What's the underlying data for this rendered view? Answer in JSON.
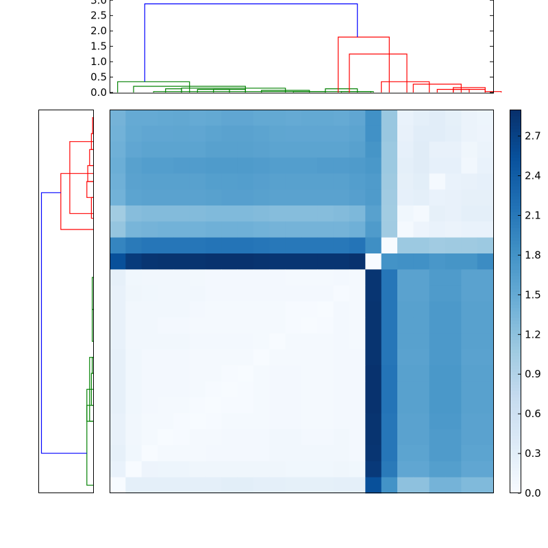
{
  "chart_data": {
    "type": "heatmap",
    "title": "",
    "xlabel": "",
    "ylabel": "",
    "cmap": "Blues",
    "colorbar": {
      "range": [
        0,
        2.9
      ],
      "ticks": [
        0.0,
        0.3,
        0.6,
        0.9,
        1.2,
        1.5,
        1.8,
        2.1,
        2.4,
        2.7
      ],
      "tick_labels": [
        "0.0",
        "0.3",
        "0.6",
        "0.9",
        "1.2",
        "1.5",
        "1.8",
        "2.1",
        "2.4",
        "2.7"
      ]
    },
    "top_dendrogram": {
      "ylim": [
        0,
        3.05
      ],
      "ticks": [
        0.0,
        0.5,
        1.0,
        1.5,
        2.0,
        2.5,
        3.0
      ],
      "tick_labels": [
        "0.0",
        "0.5",
        "1.0",
        "1.5",
        "2.0",
        "2.5",
        "3.0"
      ],
      "links": [
        {
          "x": [
            2.75,
            2.75,
            16.35,
            16.35
          ],
          "y": [
            0.0,
            0.03,
            0.03,
            0.0
          ],
          "color": "green"
        },
        {
          "x": [
            11.5,
            11.5,
            13.5,
            13.5
          ],
          "y": [
            0.0,
            0.03,
            0.03,
            0.0
          ],
          "color": "green"
        },
        {
          "x": [
            14.5,
            14.5,
            16.5,
            16.5
          ],
          "y": [
            0.0,
            0.03,
            0.03,
            0.0
          ],
          "color": "green"
        },
        {
          "x": [
            9.5,
            9.5,
            12.5,
            12.5
          ],
          "y": [
            0.0,
            0.07,
            0.07,
            0.0
          ],
          "color": "green"
        },
        {
          "x": [
            6.5,
            6.5,
            8.5,
            8.5
          ],
          "y": [
            0.0,
            0.1,
            0.1,
            0.0
          ],
          "color": "green"
        },
        {
          "x": [
            5.5,
            5.5,
            7.5,
            7.5
          ],
          "y": [
            0.0,
            0.1,
            0.1,
            0.0
          ],
          "color": "green"
        },
        {
          "x": [
            3.5,
            3.5,
            4.5,
            4.5
          ],
          "y": [
            0.0,
            0.12,
            0.12,
            0.0
          ],
          "color": "green"
        },
        {
          "x": [
            13.5,
            13.5,
            15.5,
            15.5
          ],
          "y": [
            0.0,
            0.12,
            0.12,
            0.0
          ],
          "color": "green"
        },
        {
          "x": [
            4.5,
            4.5,
            11.0,
            11.0
          ],
          "y": [
            0.0,
            0.14,
            0.14,
            0.0
          ],
          "color": "green"
        },
        {
          "x": [
            1.5,
            1.5,
            8.5,
            8.5
          ],
          "y": [
            0.0,
            0.2,
            0.2,
            0.0
          ],
          "color": "green"
        },
        {
          "x": [
            0.5,
            0.5,
            5.0,
            5.0
          ],
          "y": [
            0.0,
            0.35,
            0.35,
            0.0
          ],
          "color": "green"
        },
        {
          "x": [
            20.5,
            20.5,
            22.5,
            22.5
          ],
          "y": [
            0.0,
            0.1,
            0.1,
            0.0
          ],
          "color": "red"
        },
        {
          "x": [
            23.5,
            23.5,
            24.5,
            24.5
          ],
          "y": [
            0.0,
            0.03,
            0.03,
            0.0
          ],
          "color": "red"
        },
        {
          "x": [
            21.5,
            21.5,
            23.5,
            23.5
          ],
          "y": [
            0.0,
            0.1,
            0.1,
            0.0
          ],
          "color": "red"
        },
        {
          "x": [
            21.5,
            21.5,
            23.5,
            23.5
          ],
          "y": [
            0.0,
            0.16,
            0.16,
            0.0
          ],
          "color": "red"
        },
        {
          "x": [
            19.0,
            19.0,
            22.0,
            22.0
          ],
          "y": [
            0.0,
            0.27,
            0.27,
            0.0
          ],
          "color": "red"
        },
        {
          "x": [
            17.0,
            17.0,
            20.0,
            20.0
          ],
          "y": [
            0.0,
            0.35,
            0.35,
            0.0
          ],
          "color": "red"
        },
        {
          "x": [
            15.0,
            15.0,
            18.6,
            18.6
          ],
          "y": [
            0.0,
            1.25,
            1.25,
            0.0
          ],
          "color": "red"
        },
        {
          "x": [
            14.3,
            14.3,
            17.5,
            17.5
          ],
          "y": [
            0.0,
            1.8,
            1.8,
            0.0
          ],
          "color": "red"
        },
        {
          "x": [
            2.2,
            2.2,
            15.5,
            15.5
          ],
          "y": [
            0.35,
            2.88,
            2.88,
            1.8
          ],
          "color": "blue"
        }
      ]
    },
    "left_dendrogram": {
      "xlim": [
        0,
        3.05
      ],
      "links": [
        {
          "y": [
            0.5,
            0.5,
            1.5,
            1.5
          ],
          "x": [
            0.0,
            0.03,
            0.03,
            0.0
          ],
          "color": "red"
        },
        {
          "y": [
            1.5,
            1.5,
            2.5,
            2.5
          ],
          "x": [
            0.0,
            0.1,
            0.1,
            0.0
          ],
          "color": "red"
        },
        {
          "y": [
            2.5,
            2.5,
            3.5,
            3.5
          ],
          "x": [
            0.0,
            0.2,
            0.2,
            0.0
          ],
          "color": "red"
        },
        {
          "y": [
            3.5,
            3.5,
            4.5,
            4.5
          ],
          "x": [
            0.0,
            0.3,
            0.3,
            0.0
          ],
          "color": "red"
        },
        {
          "y": [
            4.5,
            4.5,
            5.5,
            5.5
          ],
          "x": [
            0.0,
            0.35,
            0.35,
            0.0
          ],
          "color": "red"
        },
        {
          "y": [
            5.5,
            5.5,
            6.8,
            6.8
          ],
          "x": [
            0.0,
            0.1,
            0.1,
            0.0
          ],
          "color": "red"
        },
        {
          "y": [
            2.0,
            2.0,
            6.5,
            6.5
          ],
          "x": [
            0.0,
            1.3,
            1.3,
            0.0
          ],
          "color": "red"
        },
        {
          "y": [
            4.0,
            4.0,
            7.5,
            7.5
          ],
          "x": [
            0.0,
            1.8,
            1.8,
            0.0
          ],
          "color": "red"
        },
        {
          "y": [
            10.5,
            10.5,
            12.5,
            12.5
          ],
          "x": [
            0.0,
            0.05,
            0.05,
            0.0
          ],
          "color": "green"
        },
        {
          "y": [
            12.5,
            12.5,
            14.5,
            14.5
          ],
          "x": [
            0.0,
            0.05,
            0.05,
            0.0
          ],
          "color": "green"
        },
        {
          "y": [
            15.5,
            15.5,
            16.5,
            16.5
          ],
          "x": [
            0.0,
            0.05,
            0.05,
            0.0
          ],
          "color": "green"
        },
        {
          "y": [
            16.5,
            16.5,
            18.5,
            18.5
          ],
          "x": [
            0.0,
            0.1,
            0.1,
            0.0
          ],
          "color": "green"
        },
        {
          "y": [
            15.5,
            15.5,
            19.5,
            19.5
          ],
          "x": [
            0.0,
            0.2,
            0.2,
            0.0
          ],
          "color": "green"
        },
        {
          "y": [
            17.5,
            17.5,
            19.5,
            19.5
          ],
          "x": [
            0.0,
            0.35,
            0.35,
            0.0
          ],
          "color": "green"
        },
        {
          "y": [
            18.5,
            18.5,
            23.5,
            23.5
          ],
          "x": [
            0.0,
            0.35,
            0.35,
            0.0
          ],
          "color": "green"
        },
        {
          "y": [
            5.2,
            5.2,
            21.5,
            21.5
          ],
          "x": [
            1.8,
            2.88,
            2.88,
            0.35
          ],
          "color": "blue"
        }
      ]
    },
    "n": 24,
    "values": [
      [
        1.38,
        1.5,
        1.5,
        1.52,
        1.53,
        1.5,
        1.52,
        1.55,
        1.55,
        1.52,
        1.52,
        1.5,
        1.52,
        1.52,
        1.5,
        1.55,
        1.82,
        1.12,
        0.2,
        0.28,
        0.32,
        0.26,
        0.18,
        0.14
      ],
      [
        1.4,
        1.52,
        1.55,
        1.55,
        1.56,
        1.55,
        1.58,
        1.6,
        1.6,
        1.58,
        1.56,
        1.55,
        1.55,
        1.55,
        1.55,
        1.58,
        1.82,
        1.12,
        0.22,
        0.32,
        0.32,
        0.28,
        0.18,
        0.15
      ],
      [
        1.42,
        1.55,
        1.58,
        1.58,
        1.58,
        1.58,
        1.62,
        1.62,
        1.62,
        1.6,
        1.58,
        1.58,
        1.58,
        1.58,
        1.58,
        1.62,
        1.78,
        1.1,
        0.24,
        0.34,
        0.22,
        0.22,
        0.12,
        0.18
      ],
      [
        1.45,
        1.62,
        1.66,
        1.66,
        1.68,
        1.68,
        1.7,
        1.7,
        1.7,
        1.68,
        1.66,
        1.66,
        1.66,
        1.68,
        1.68,
        1.7,
        1.74,
        1.1,
        0.28,
        0.34,
        0.24,
        0.24,
        0.08,
        0.2
      ],
      [
        1.42,
        1.6,
        1.62,
        1.62,
        1.62,
        1.62,
        1.65,
        1.65,
        1.66,
        1.64,
        1.62,
        1.62,
        1.62,
        1.62,
        1.62,
        1.66,
        1.7,
        1.08,
        0.25,
        0.3,
        0.05,
        0.2,
        0.22,
        0.24
      ],
      [
        1.4,
        1.58,
        1.6,
        1.6,
        1.6,
        1.6,
        1.62,
        1.64,
        1.64,
        1.62,
        1.6,
        1.6,
        1.6,
        1.6,
        1.6,
        1.64,
        1.7,
        1.06,
        0.24,
        0.28,
        0.2,
        0.22,
        0.25,
        0.25
      ],
      [
        1.05,
        1.25,
        1.28,
        1.28,
        1.28,
        1.28,
        1.3,
        1.3,
        1.3,
        1.28,
        1.26,
        1.26,
        1.26,
        1.26,
        1.28,
        1.32,
        1.62,
        1.05,
        0.1,
        0.05,
        0.25,
        0.22,
        0.28,
        0.28
      ],
      [
        1.15,
        1.36,
        1.38,
        1.4,
        1.4,
        1.4,
        1.42,
        1.42,
        1.42,
        1.4,
        1.38,
        1.38,
        1.38,
        1.38,
        1.38,
        1.42,
        1.7,
        1.06,
        0.05,
        0.15,
        0.2,
        0.18,
        0.2,
        0.2
      ],
      [
        1.95,
        2.08,
        2.12,
        2.12,
        2.12,
        2.12,
        2.14,
        2.14,
        2.14,
        2.12,
        2.1,
        2.1,
        2.1,
        2.1,
        2.1,
        2.14,
        1.85,
        0.0,
        1.1,
        1.1,
        1.06,
        1.08,
        1.08,
        1.1
      ],
      [
        2.55,
        2.78,
        2.85,
        2.86,
        2.86,
        2.86,
        2.88,
        2.88,
        2.88,
        2.86,
        2.85,
        2.85,
        2.85,
        2.85,
        2.85,
        2.88,
        0.0,
        1.8,
        1.82,
        1.82,
        1.75,
        1.78,
        1.78,
        1.88
      ],
      [
        0.25,
        0.1,
        0.08,
        0.08,
        0.08,
        0.07,
        0.06,
        0.06,
        0.06,
        0.06,
        0.06,
        0.05,
        0.04,
        0.04,
        0.06,
        0.05,
        2.85,
        2.12,
        1.6,
        1.6,
        1.7,
        1.7,
        1.6,
        1.6
      ],
      [
        0.22,
        0.12,
        0.1,
        0.08,
        0.08,
        0.08,
        0.06,
        0.06,
        0.06,
        0.06,
        0.06,
        0.06,
        0.06,
        0.06,
        0.02,
        0.05,
        2.85,
        2.12,
        1.6,
        1.6,
        1.7,
        1.7,
        1.6,
        1.6
      ],
      [
        0.22,
        0.08,
        0.08,
        0.08,
        0.08,
        0.06,
        0.04,
        0.04,
        0.04,
        0.04,
        0.04,
        0.02,
        0.02,
        0.0,
        0.06,
        0.04,
        2.86,
        2.12,
        1.62,
        1.62,
        1.72,
        1.72,
        1.62,
        1.62
      ],
      [
        0.22,
        0.08,
        0.08,
        0.06,
        0.06,
        0.05,
        0.04,
        0.04,
        0.04,
        0.04,
        0.04,
        0.02,
        0.0,
        0.02,
        0.06,
        0.04,
        2.86,
        2.12,
        1.62,
        1.62,
        1.72,
        1.72,
        1.62,
        1.62
      ],
      [
        0.22,
        0.08,
        0.08,
        0.08,
        0.08,
        0.06,
        0.06,
        0.06,
        0.06,
        0.04,
        0.0,
        0.04,
        0.04,
        0.04,
        0.06,
        0.05,
        2.86,
        2.12,
        1.62,
        1.62,
        1.72,
        1.72,
        1.62,
        1.62
      ],
      [
        0.25,
        0.1,
        0.06,
        0.06,
        0.06,
        0.05,
        0.05,
        0.04,
        0.04,
        0.0,
        0.04,
        0.04,
        0.04,
        0.04,
        0.06,
        0.06,
        2.86,
        2.12,
        1.6,
        1.6,
        1.72,
        1.72,
        1.6,
        1.6
      ],
      [
        0.25,
        0.1,
        0.06,
        0.06,
        0.06,
        0.05,
        0.04,
        0.02,
        0.0,
        0.04,
        0.06,
        0.06,
        0.04,
        0.04,
        0.06,
        0.06,
        2.88,
        2.14,
        1.62,
        1.62,
        1.74,
        1.74,
        1.62,
        1.62
      ],
      [
        0.25,
        0.1,
        0.06,
        0.06,
        0.06,
        0.04,
        0.02,
        0.0,
        0.02,
        0.04,
        0.06,
        0.06,
        0.04,
        0.04,
        0.06,
        0.06,
        2.88,
        2.14,
        1.62,
        1.62,
        1.74,
        1.74,
        1.62,
        1.62
      ],
      [
        0.25,
        0.1,
        0.06,
        0.04,
        0.04,
        0.02,
        0.0,
        0.02,
        0.02,
        0.05,
        0.06,
        0.06,
        0.05,
        0.05,
        0.06,
        0.06,
        2.88,
        2.14,
        1.62,
        1.62,
        1.74,
        1.74,
        1.62,
        1.62
      ],
      [
        0.22,
        0.08,
        0.04,
        0.04,
        0.02,
        0.0,
        0.02,
        0.04,
        0.04,
        0.05,
        0.06,
        0.06,
        0.05,
        0.05,
        0.06,
        0.06,
        2.86,
        2.12,
        1.6,
        1.6,
        1.72,
        1.72,
        1.6,
        1.6
      ],
      [
        0.22,
        0.08,
        0.04,
        0.0,
        0.02,
        0.04,
        0.04,
        0.06,
        0.06,
        0.06,
        0.08,
        0.08,
        0.06,
        0.06,
        0.08,
        0.06,
        2.86,
        2.12,
        1.6,
        1.6,
        1.7,
        1.7,
        1.6,
        1.6
      ],
      [
        0.25,
        0.1,
        0.0,
        0.04,
        0.04,
        0.04,
        0.06,
        0.06,
        0.06,
        0.06,
        0.08,
        0.08,
        0.08,
        0.08,
        0.08,
        0.06,
        2.85,
        2.12,
        1.58,
        1.58,
        1.7,
        1.7,
        1.58,
        1.58
      ],
      [
        0.2,
        0.0,
        0.15,
        0.14,
        0.14,
        0.12,
        0.12,
        0.12,
        0.12,
        0.12,
        0.12,
        0.1,
        0.1,
        0.1,
        0.12,
        0.1,
        2.8,
        2.08,
        1.55,
        1.55,
        1.65,
        1.65,
        1.55,
        1.55
      ],
      [
        0.0,
        0.28,
        0.28,
        0.28,
        0.28,
        0.28,
        0.28,
        0.3,
        0.3,
        0.28,
        0.28,
        0.26,
        0.26,
        0.26,
        0.28,
        0.28,
        2.55,
        1.8,
        1.2,
        1.2,
        1.38,
        1.38,
        1.3,
        1.3
      ]
    ]
  }
}
